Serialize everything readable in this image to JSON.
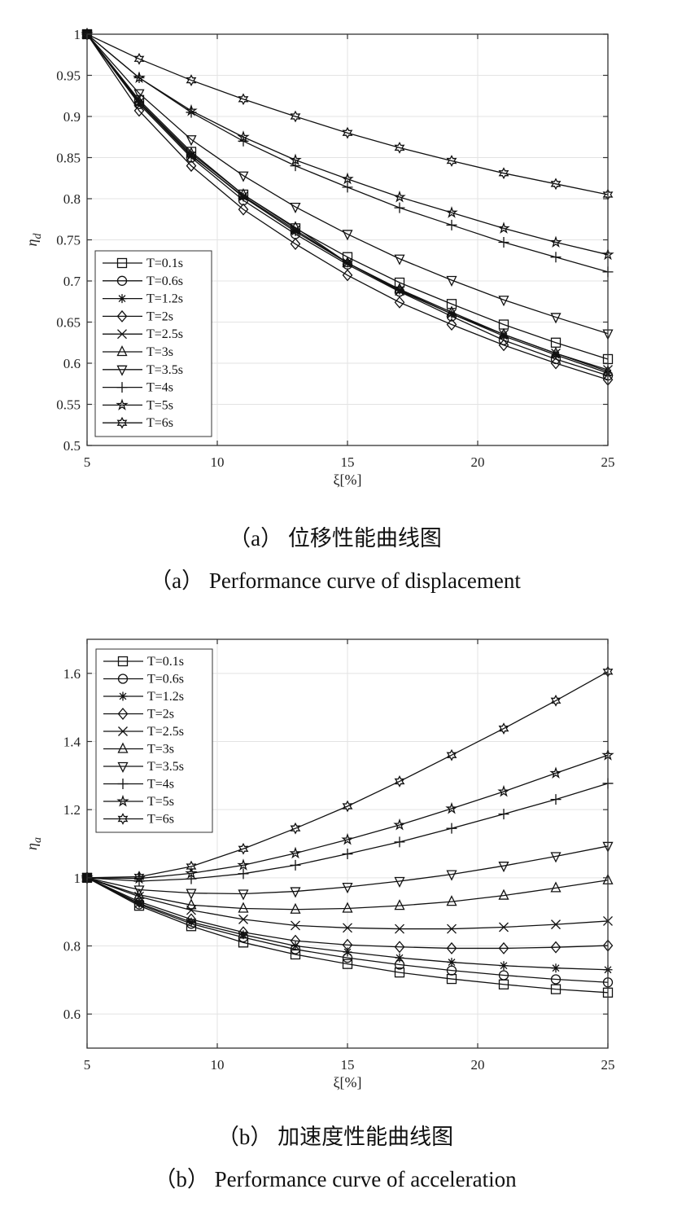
{
  "captions": {
    "a_cn": "（a） 位移性能曲线图",
    "a_en": "（a） Performance curve of displacement",
    "b_cn": "（b） 加速度性能曲线图",
    "b_en": "（b） Performance curve of acceleration"
  },
  "chart_data": [
    {
      "type": "line",
      "xlabel": "ξ[%]",
      "ylabel": "η_d",
      "xlim": [
        5,
        25
      ],
      "ylim": [
        0.5,
        1
      ],
      "xticks": [
        5,
        10,
        15,
        20,
        25
      ],
      "yticks": [
        0.5,
        0.55,
        0.6,
        0.65,
        0.7,
        0.75,
        0.8,
        0.85,
        0.9,
        0.95,
        1
      ],
      "grid": true,
      "legend": "bottom-left",
      "x": [
        5,
        7,
        9,
        11,
        13,
        15,
        17,
        19,
        21,
        23,
        25
      ],
      "series": [
        {
          "name": "T=0.1s",
          "marker": "square",
          "values": [
            1,
            0.92,
            0.857,
            0.805,
            0.764,
            0.729,
            0.698,
            0.672,
            0.647,
            0.625,
            0.605
          ]
        },
        {
          "name": "T=0.6s",
          "marker": "circle",
          "values": [
            1,
            0.915,
            0.85,
            0.798,
            0.757,
            0.72,
            0.687,
            0.657,
            0.628,
            0.605,
            0.585
          ]
        },
        {
          "name": "T=1.2s",
          "marker": "asterisk",
          "values": [
            1,
            0.917,
            0.853,
            0.802,
            0.76,
            0.722,
            0.689,
            0.66,
            0.633,
            0.61,
            0.588
          ]
        },
        {
          "name": "T=2s",
          "marker": "diamond",
          "values": [
            1,
            0.907,
            0.84,
            0.787,
            0.745,
            0.707,
            0.674,
            0.647,
            0.622,
            0.6,
            0.58
          ]
        },
        {
          "name": "T=2.5s",
          "marker": "x",
          "values": [
            1,
            0.917,
            0.852,
            0.803,
            0.762,
            0.722,
            0.688,
            0.66,
            0.635,
            0.612,
            0.592
          ]
        },
        {
          "name": "T=3s",
          "marker": "triangle-up",
          "values": [
            1,
            0.918,
            0.855,
            0.805,
            0.765,
            0.722,
            0.69,
            0.662,
            0.635,
            0.612,
            0.59
          ]
        },
        {
          "name": "T=3.5s",
          "marker": "triangle-down",
          "values": [
            1,
            0.928,
            0.872,
            0.828,
            0.79,
            0.757,
            0.727,
            0.701,
            0.677,
            0.656,
            0.636
          ]
        },
        {
          "name": "T=4s",
          "marker": "plus",
          "values": [
            1,
            0.947,
            0.905,
            0.87,
            0.84,
            0.814,
            0.789,
            0.768,
            0.747,
            0.729,
            0.711
          ]
        },
        {
          "name": "T=5s",
          "marker": "star",
          "values": [
            1,
            0.947,
            0.907,
            0.875,
            0.847,
            0.824,
            0.802,
            0.783,
            0.764,
            0.747,
            0.732
          ]
        },
        {
          "name": "T=6s",
          "marker": "hexagram",
          "values": [
            1,
            0.97,
            0.944,
            0.921,
            0.9,
            0.88,
            0.862,
            0.846,
            0.831,
            0.818,
            0.805
          ]
        }
      ]
    },
    {
      "type": "line",
      "xlabel": "ξ[%]",
      "ylabel": "η_a",
      "xlim": [
        5,
        25
      ],
      "ylim": [
        0.5,
        1.7
      ],
      "xticks": [
        5,
        10,
        15,
        20,
        25
      ],
      "yticks": [
        0.6,
        0.8,
        1,
        1.2,
        1.4,
        1.6
      ],
      "grid": true,
      "legend": "top-left",
      "x": [
        5,
        7,
        9,
        11,
        13,
        15,
        17,
        19,
        21,
        23,
        25
      ],
      "series": [
        {
          "name": "T=0.1s",
          "marker": "square",
          "values": [
            1,
            0.918,
            0.858,
            0.81,
            0.775,
            0.747,
            0.722,
            0.703,
            0.687,
            0.673,
            0.663
          ]
        },
        {
          "name": "T=0.6s",
          "marker": "circle",
          "values": [
            1,
            0.922,
            0.865,
            0.825,
            0.79,
            0.765,
            0.745,
            0.728,
            0.714,
            0.702,
            0.693
          ]
        },
        {
          "name": "T=1.2s",
          "marker": "asterisk",
          "values": [
            1,
            0.925,
            0.87,
            0.833,
            0.8,
            0.782,
            0.765,
            0.752,
            0.742,
            0.735,
            0.73
          ]
        },
        {
          "name": "T=2s",
          "marker": "diamond",
          "values": [
            1,
            0.93,
            0.878,
            0.84,
            0.815,
            0.803,
            0.797,
            0.793,
            0.793,
            0.796,
            0.801
          ]
        },
        {
          "name": "T=2.5s",
          "marker": "x",
          "values": [
            1,
            0.945,
            0.905,
            0.878,
            0.86,
            0.853,
            0.85,
            0.85,
            0.855,
            0.863,
            0.873
          ]
        },
        {
          "name": "T=3s",
          "marker": "triangle-up",
          "values": [
            1,
            0.95,
            0.92,
            0.91,
            0.907,
            0.91,
            0.918,
            0.93,
            0.948,
            0.97,
            0.993
          ]
        },
        {
          "name": "T=3.5s",
          "marker": "triangle-down",
          "values": [
            1,
            0.965,
            0.955,
            0.953,
            0.96,
            0.973,
            0.99,
            1.01,
            1.035,
            1.063,
            1.093
          ]
        },
        {
          "name": "T=4s",
          "marker": "plus",
          "values": [
            1,
            0.99,
            0.997,
            1.012,
            1.037,
            1.07,
            1.105,
            1.145,
            1.187,
            1.23,
            1.277
          ]
        },
        {
          "name": "T=5s",
          "marker": "star",
          "values": [
            1,
            0.998,
            1.013,
            1.037,
            1.072,
            1.112,
            1.155,
            1.203,
            1.253,
            1.307,
            1.36
          ]
        },
        {
          "name": "T=6s",
          "marker": "hexagram",
          "values": [
            1,
            1.003,
            1.033,
            1.085,
            1.145,
            1.21,
            1.283,
            1.36,
            1.438,
            1.52,
            1.605
          ]
        }
      ]
    }
  ]
}
